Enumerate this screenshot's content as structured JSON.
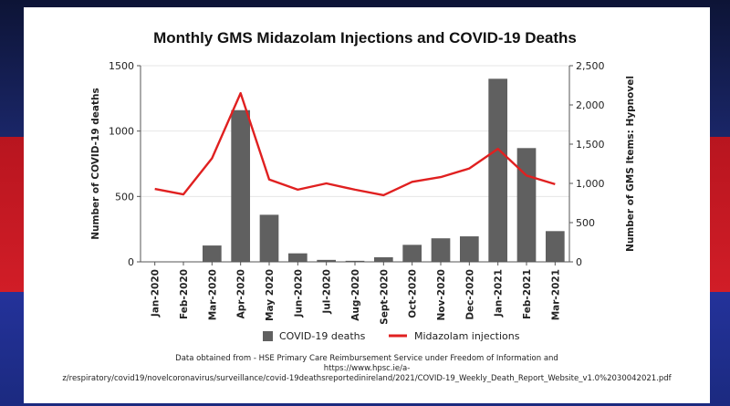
{
  "chart_data": {
    "type": "bar",
    "title": "Monthly GMS Midazolam Injections and COVID-19 Deaths",
    "categories": [
      "Jan-2020",
      "Feb-2020",
      "Mar-2020",
      "Apr-2020",
      "May 2020",
      "Jun-2020",
      "Jul-2020",
      "Aug-2020",
      "Sept-2020",
      "Oct-2020",
      "Nov-2020",
      "Dec-2020",
      "Jan-2021",
      "Feb-2021",
      "Mar-2021"
    ],
    "series": [
      {
        "name": "COVID-19 deaths",
        "type": "bar",
        "axis": "left",
        "color": "#606060",
        "values": [
          0,
          0,
          125,
          1160,
          360,
          65,
          15,
          8,
          35,
          130,
          180,
          195,
          1400,
          870,
          235
        ]
      },
      {
        "name": "Midazolam injections",
        "type": "line",
        "axis": "right",
        "color": "#e02020",
        "values": [
          930,
          860,
          1320,
          2150,
          1050,
          920,
          1000,
          920,
          850,
          1020,
          1080,
          1190,
          1440,
          1100,
          990
        ]
      }
    ],
    "ylabel": "Number of COVID-19 deaths",
    "ylim": [
      0,
      1500
    ],
    "yticks": [
      "0",
      "500",
      "1000",
      "1500"
    ],
    "ytick_values": [
      0,
      500,
      1000,
      1500
    ],
    "y2label": "Number of GMS Items: Hypnovel",
    "y2lim": [
      0,
      2500
    ],
    "y2ticks": [
      "0",
      "500",
      "1,000",
      "1,500",
      "2,000",
      "2,500"
    ],
    "y2tick_values": [
      0,
      500,
      1000,
      1500,
      2000,
      2500
    ],
    "legend_position": "bottom"
  },
  "source": {
    "line1": "Data obtained from -  HSE Primary Care Reimbursement Service under Freedom of Information and",
    "line2": "https://www.hpsc.ie/a-",
    "line3": "z/respiratory/covid19/novelcoronavirus/surveillance/covid-19deathsreportedinireland/2021/COVID-19_Weekly_Death_Report_Website_v1.0%2030042021.pdf"
  }
}
